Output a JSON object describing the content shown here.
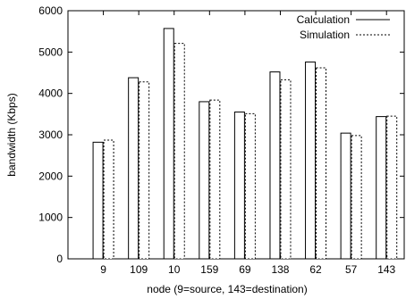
{
  "chart_data": {
    "type": "bar",
    "xlabel": "node (9=source, 143=destination)",
    "ylabel": "bandwidth (Kbps)",
    "categories": [
      "9",
      "109",
      "10",
      "159",
      "69",
      "138",
      "62",
      "57",
      "143"
    ],
    "ylim": [
      0,
      6000
    ],
    "yticks": [
      0,
      1000,
      2000,
      3000,
      4000,
      5000,
      6000
    ],
    "grid": false,
    "legend_position": "top-right",
    "series": [
      {
        "name": "Calculation",
        "style": "solid",
        "values": [
          2820,
          4380,
          5570,
          3800,
          3550,
          4520,
          4760,
          3040,
          3440
        ]
      },
      {
        "name": "Simulation",
        "style": "dashed",
        "values": [
          2870,
          4280,
          5210,
          3840,
          3510,
          4330,
          4620,
          2980,
          3450
        ]
      }
    ]
  }
}
